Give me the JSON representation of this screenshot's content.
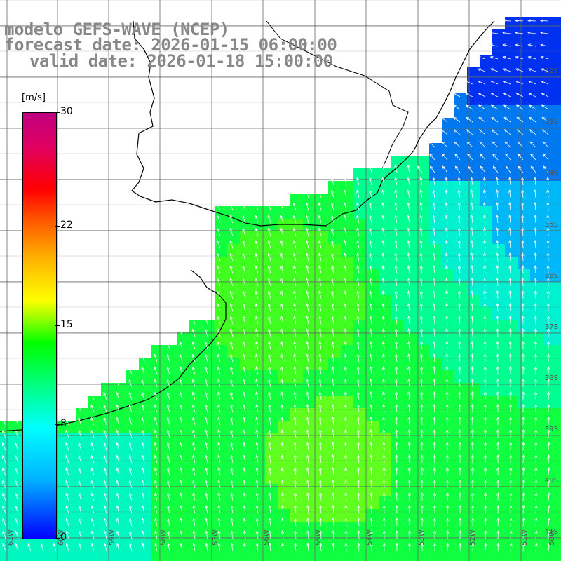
{
  "title": {
    "line1": "modelo GEFS-WAVE (NCEP)",
    "line2": "forecast date: 2026-01-15 06:00:00",
    "line3": "valid date: 2026-01-18 15:00:00"
  },
  "colorbar": {
    "unit": "[m/s]",
    "ticks": [
      "30",
      "22",
      "15",
      "8",
      "0"
    ],
    "tick_values": [
      30,
      22,
      15,
      8,
      0
    ]
  },
  "axis_labels": {
    "lon": [
      "61W",
      "60W",
      "59W",
      "58W",
      "57W",
      "56W",
      "55W",
      "54W",
      "53W",
      "52W",
      "51W",
      "50W"
    ],
    "lat": [
      "32S",
      "33S",
      "34S",
      "35S",
      "36S",
      "37S",
      "38S",
      "39S",
      "40S",
      "41S"
    ]
  },
  "colors": {
    "background": "#ffffff",
    "title": "#888888",
    "grid": "#666666",
    "coast": "#000000",
    "arrows": "#ffffff"
  }
}
